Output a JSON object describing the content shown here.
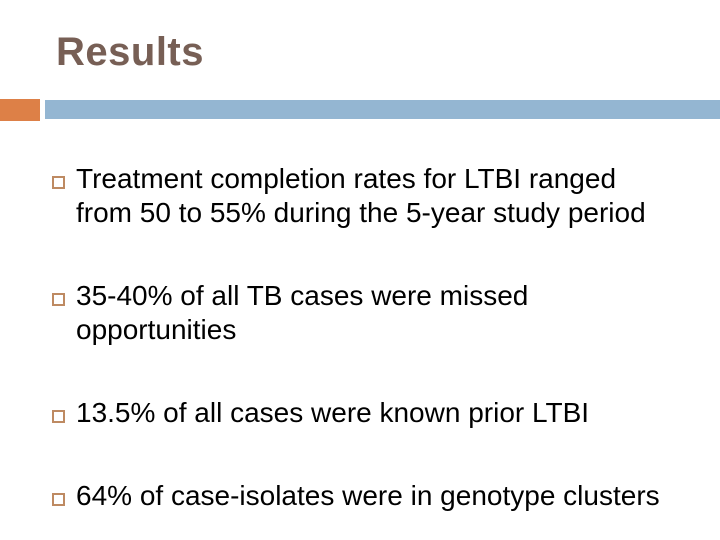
{
  "slide": {
    "title": "Results",
    "bullets": [
      {
        "lines": [
          "Treatment completion rates for LTBI ranged",
          "from 50 to 55% during the 5-year study period"
        ]
      },
      {
        "lines": [
          "35-40% of all TB cases were missed",
          "opportunities"
        ]
      },
      {
        "lines": [
          "13.5% of all cases were known prior LTBI"
        ]
      },
      {
        "lines": [
          "64% of case-isolates were in genotype clusters"
        ]
      }
    ],
    "colors": {
      "title_text": "#775F55",
      "accent_orange": "#DD8047",
      "accent_blue": "#94B6D2",
      "bullet_outline": "#BE8A62",
      "body_text": "#000000",
      "background": "#FFFFFF"
    }
  }
}
